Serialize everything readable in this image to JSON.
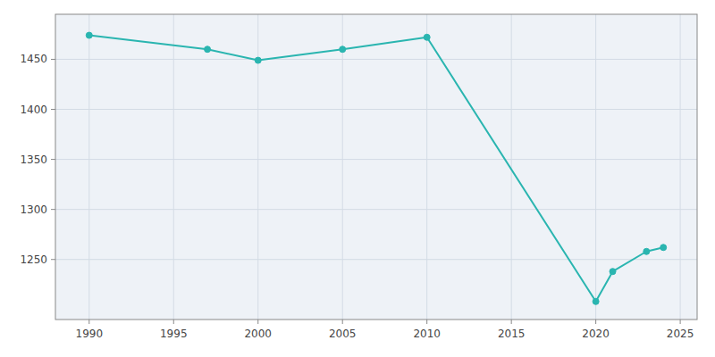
{
  "chart_data": {
    "type": "line",
    "x": [
      1990,
      1997,
      2000,
      2005,
      2010,
      2020,
      2021,
      2023,
      2024
    ],
    "values": [
      1474,
      1460,
      1449,
      1460,
      1472,
      1208,
      1238,
      1258,
      1262
    ],
    "color": "#2AB5B0",
    "marker": "circle",
    "xlim": [
      1988,
      2026
    ],
    "ylim": [
      1190,
      1495
    ],
    "xticks": [
      1990,
      1995,
      2000,
      2005,
      2010,
      2015,
      2020,
      2025
    ],
    "yticks": [
      1250,
      1300,
      1350,
      1400,
      1450
    ],
    "grid": true
  }
}
